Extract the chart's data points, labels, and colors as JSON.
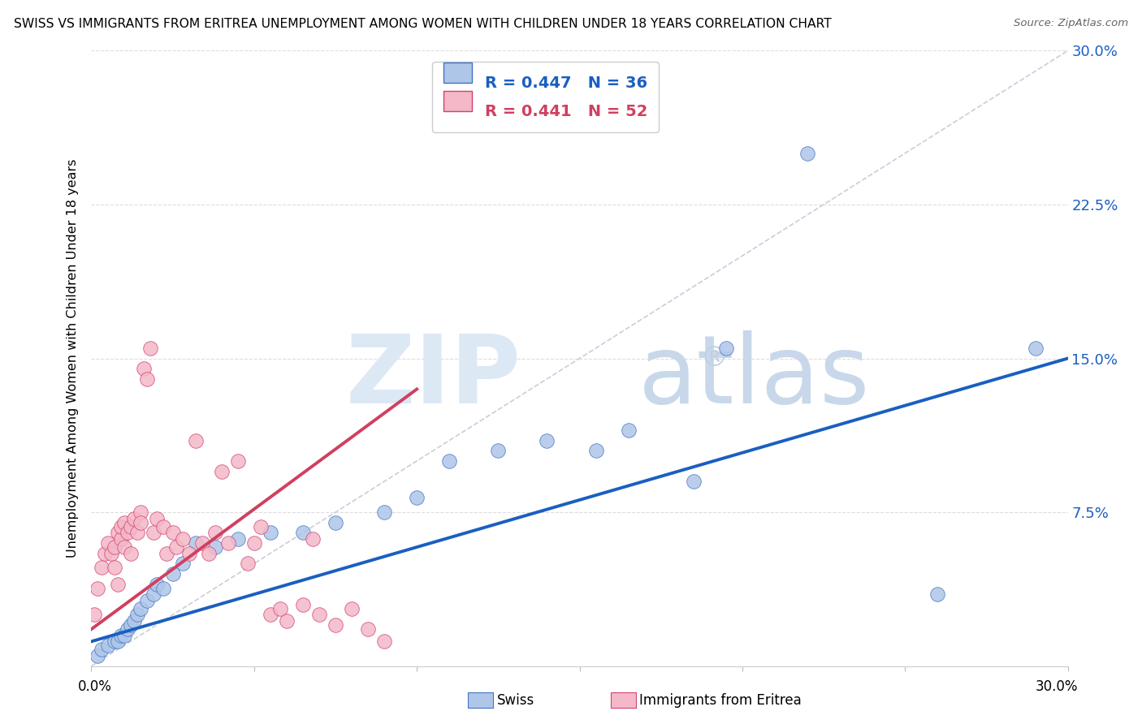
{
  "title": "SWISS VS IMMIGRANTS FROM ERITREA UNEMPLOYMENT AMONG WOMEN WITH CHILDREN UNDER 18 YEARS CORRELATION CHART",
  "source": "Source: ZipAtlas.com",
  "ylabel": "Unemployment Among Women with Children Under 18 years",
  "xlim": [
    0.0,
    0.3
  ],
  "ylim": [
    0.0,
    0.3
  ],
  "legend_R_swiss": "0.447",
  "legend_N_swiss": "36",
  "legend_R_eritrea": "0.441",
  "legend_N_eritrea": "52",
  "swiss_fill": "#aec6e8",
  "swiss_edge": "#4472c4",
  "eritrea_fill": "#f4b8c8",
  "eritrea_edge": "#d44070",
  "swiss_line": "#1a5fc0",
  "eritrea_line": "#d04060",
  "diag_color": "#ccccdd",
  "grid_color": "#dddddd",
  "right_tick_color": "#1a5fc0",
  "swiss_x": [
    0.002,
    0.003,
    0.005,
    0.007,
    0.008,
    0.009,
    0.01,
    0.011,
    0.012,
    0.013,
    0.014,
    0.015,
    0.017,
    0.019,
    0.02,
    0.022,
    0.025,
    0.028,
    0.032,
    0.038,
    0.045,
    0.055,
    0.065,
    0.075,
    0.09,
    0.1,
    0.11,
    0.125,
    0.14,
    0.155,
    0.165,
    0.185,
    0.195,
    0.22,
    0.26,
    0.29
  ],
  "swiss_y": [
    0.005,
    0.008,
    0.01,
    0.012,
    0.012,
    0.015,
    0.015,
    0.018,
    0.02,
    0.022,
    0.025,
    0.028,
    0.032,
    0.035,
    0.04,
    0.038,
    0.045,
    0.05,
    0.06,
    0.058,
    0.062,
    0.065,
    0.065,
    0.07,
    0.075,
    0.082,
    0.1,
    0.105,
    0.11,
    0.105,
    0.115,
    0.09,
    0.155,
    0.25,
    0.035,
    0.155
  ],
  "eritrea_x": [
    0.001,
    0.002,
    0.003,
    0.004,
    0.005,
    0.006,
    0.007,
    0.007,
    0.008,
    0.008,
    0.009,
    0.009,
    0.01,
    0.01,
    0.011,
    0.012,
    0.012,
    0.013,
    0.014,
    0.015,
    0.015,
    0.016,
    0.017,
    0.018,
    0.019,
    0.02,
    0.022,
    0.023,
    0.025,
    0.026,
    0.028,
    0.03,
    0.032,
    0.034,
    0.036,
    0.038,
    0.04,
    0.042,
    0.045,
    0.048,
    0.05,
    0.052,
    0.055,
    0.058,
    0.06,
    0.065,
    0.068,
    0.07,
    0.075,
    0.08,
    0.085,
    0.09
  ],
  "eritrea_y": [
    0.025,
    0.038,
    0.048,
    0.055,
    0.06,
    0.055,
    0.048,
    0.058,
    0.04,
    0.065,
    0.062,
    0.068,
    0.058,
    0.07,
    0.065,
    0.055,
    0.068,
    0.072,
    0.065,
    0.075,
    0.07,
    0.145,
    0.14,
    0.155,
    0.065,
    0.072,
    0.068,
    0.055,
    0.065,
    0.058,
    0.062,
    0.055,
    0.11,
    0.06,
    0.055,
    0.065,
    0.095,
    0.06,
    0.1,
    0.05,
    0.06,
    0.068,
    0.025,
    0.028,
    0.022,
    0.03,
    0.062,
    0.025,
    0.02,
    0.028,
    0.018,
    0.012
  ],
  "swiss_trend_x": [
    0.0,
    0.3
  ],
  "swiss_trend_y_start": 0.012,
  "swiss_trend_y_end": 0.15,
  "eritrea_trend_x": [
    0.0,
    0.1
  ],
  "eritrea_trend_y_start": 0.018,
  "eritrea_trend_y_end": 0.135
}
